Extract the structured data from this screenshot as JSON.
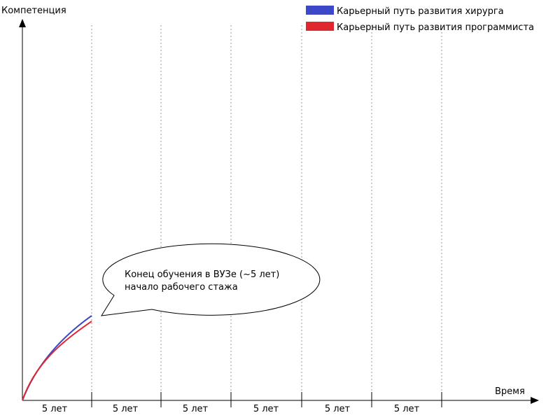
{
  "axes": {
    "y_label": "Компетенция",
    "x_label": "Время"
  },
  "legend": {
    "items": [
      {
        "label": "Карьерный путь развития хирурга",
        "color": "#3c48c8"
      },
      {
        "label": "Карьерный путь развития программиста",
        "color": "#e0262e"
      }
    ]
  },
  "x_segments": [
    "5 лет",
    "5 лет",
    "5 лет",
    "5 лет",
    "5 лет",
    "5 лет"
  ],
  "callout": {
    "line1": "Конец обучения в ВУЗе (~5 лет)",
    "line2": "начало рабочего стажа"
  },
  "colors": {
    "axis": "#000000",
    "grid": "#9a9a9a",
    "surgeon": "#3c48c8",
    "programmer": "#e0262e"
  }
}
